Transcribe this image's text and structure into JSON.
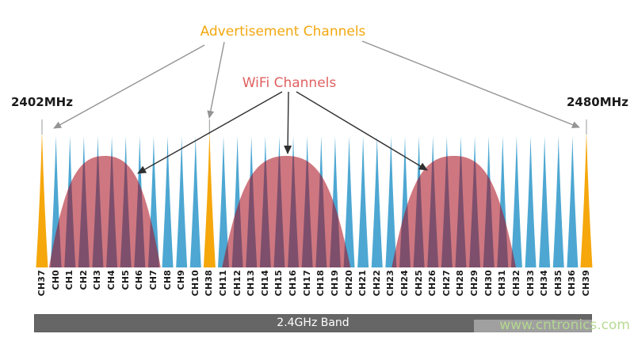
{
  "labels": {
    "advertisement_channels": "Advertisement Channels",
    "wifi_channels": "WiFi Channels",
    "freq_start": "2402MHz",
    "freq_end": "2480MHz",
    "band": "2.4GHz Band",
    "watermark": "www.cntronics.com"
  },
  "colors": {
    "data_channel_fill": "#4DA7D2",
    "advertising_channel_fill": "#F5A70B",
    "wifi_hump_fill": "rgba(166,8,24,0.55)",
    "advertisement_label_text": "#F2A70E",
    "wifi_label_text": "#E06161",
    "band_bar_fill": "#666666",
    "band_bar_text": "#FFFFFF",
    "watermark_text": "#B5DA8E",
    "gray_arrow": "#949494",
    "black_arrow": "#2F2F2F",
    "carrier_tick": "#ABABAB"
  },
  "chart_data": {
    "type": "area",
    "title": "BLE channels and WiFi channels sharing the 2.4GHz band",
    "x_axis": {
      "start_label": "2402MHz",
      "end_label": "2480MHz",
      "band_label": "2.4GHz Band"
    },
    "advertising_channels": [
      "CH37",
      "CH38",
      "CH39"
    ],
    "channels": [
      {
        "label": "CH37",
        "type": "advertising"
      },
      {
        "label": "CH0",
        "type": "data"
      },
      {
        "label": "CH1",
        "type": "data"
      },
      {
        "label": "CH2",
        "type": "data"
      },
      {
        "label": "CH3",
        "type": "data"
      },
      {
        "label": "CH4",
        "type": "data"
      },
      {
        "label": "CH5",
        "type": "data"
      },
      {
        "label": "CH6",
        "type": "data"
      },
      {
        "label": "CH7",
        "type": "data"
      },
      {
        "label": "CH8",
        "type": "data"
      },
      {
        "label": "CH9",
        "type": "data"
      },
      {
        "label": "CH10",
        "type": "data"
      },
      {
        "label": "CH38",
        "type": "advertising"
      },
      {
        "label": "CH11",
        "type": "data"
      },
      {
        "label": "CH12",
        "type": "data"
      },
      {
        "label": "CH13",
        "type": "data"
      },
      {
        "label": "CH14",
        "type": "data"
      },
      {
        "label": "CH15",
        "type": "data"
      },
      {
        "label": "CH16",
        "type": "data"
      },
      {
        "label": "CH17",
        "type": "data"
      },
      {
        "label": "CH18",
        "type": "data"
      },
      {
        "label": "CH19",
        "type": "data"
      },
      {
        "label": "CH20",
        "type": "data"
      },
      {
        "label": "CH21",
        "type": "data"
      },
      {
        "label": "CH22",
        "type": "data"
      },
      {
        "label": "CH23",
        "type": "data"
      },
      {
        "label": "CH24",
        "type": "data"
      },
      {
        "label": "CH25",
        "type": "data"
      },
      {
        "label": "CH26",
        "type": "data"
      },
      {
        "label": "CH27",
        "type": "data"
      },
      {
        "label": "CH28",
        "type": "data"
      },
      {
        "label": "CH29",
        "type": "data"
      },
      {
        "label": "CH30",
        "type": "data"
      },
      {
        "label": "CH31",
        "type": "data"
      },
      {
        "label": "CH32",
        "type": "data"
      },
      {
        "label": "CH33",
        "type": "data"
      },
      {
        "label": "CH34",
        "type": "data"
      },
      {
        "label": "CH35",
        "type": "data"
      },
      {
        "label": "CH36",
        "type": "data"
      },
      {
        "label": "CH39",
        "type": "advertising"
      }
    ],
    "wifi_humps": [
      {
        "label": "WiFi hump 1",
        "span_channels": "CH0-CH7",
        "center_index": 4.5,
        "half_width_channels": 4.0
      },
      {
        "label": "WiFi hump 2",
        "span_channels": "CH11-CH19",
        "center_index": 17.5,
        "half_width_channels": 4.6
      },
      {
        "label": "WiFi hump 3",
        "span_channels": "CH24-CH32",
        "center_index": 29.5,
        "half_width_channels": 4.45
      }
    ]
  }
}
